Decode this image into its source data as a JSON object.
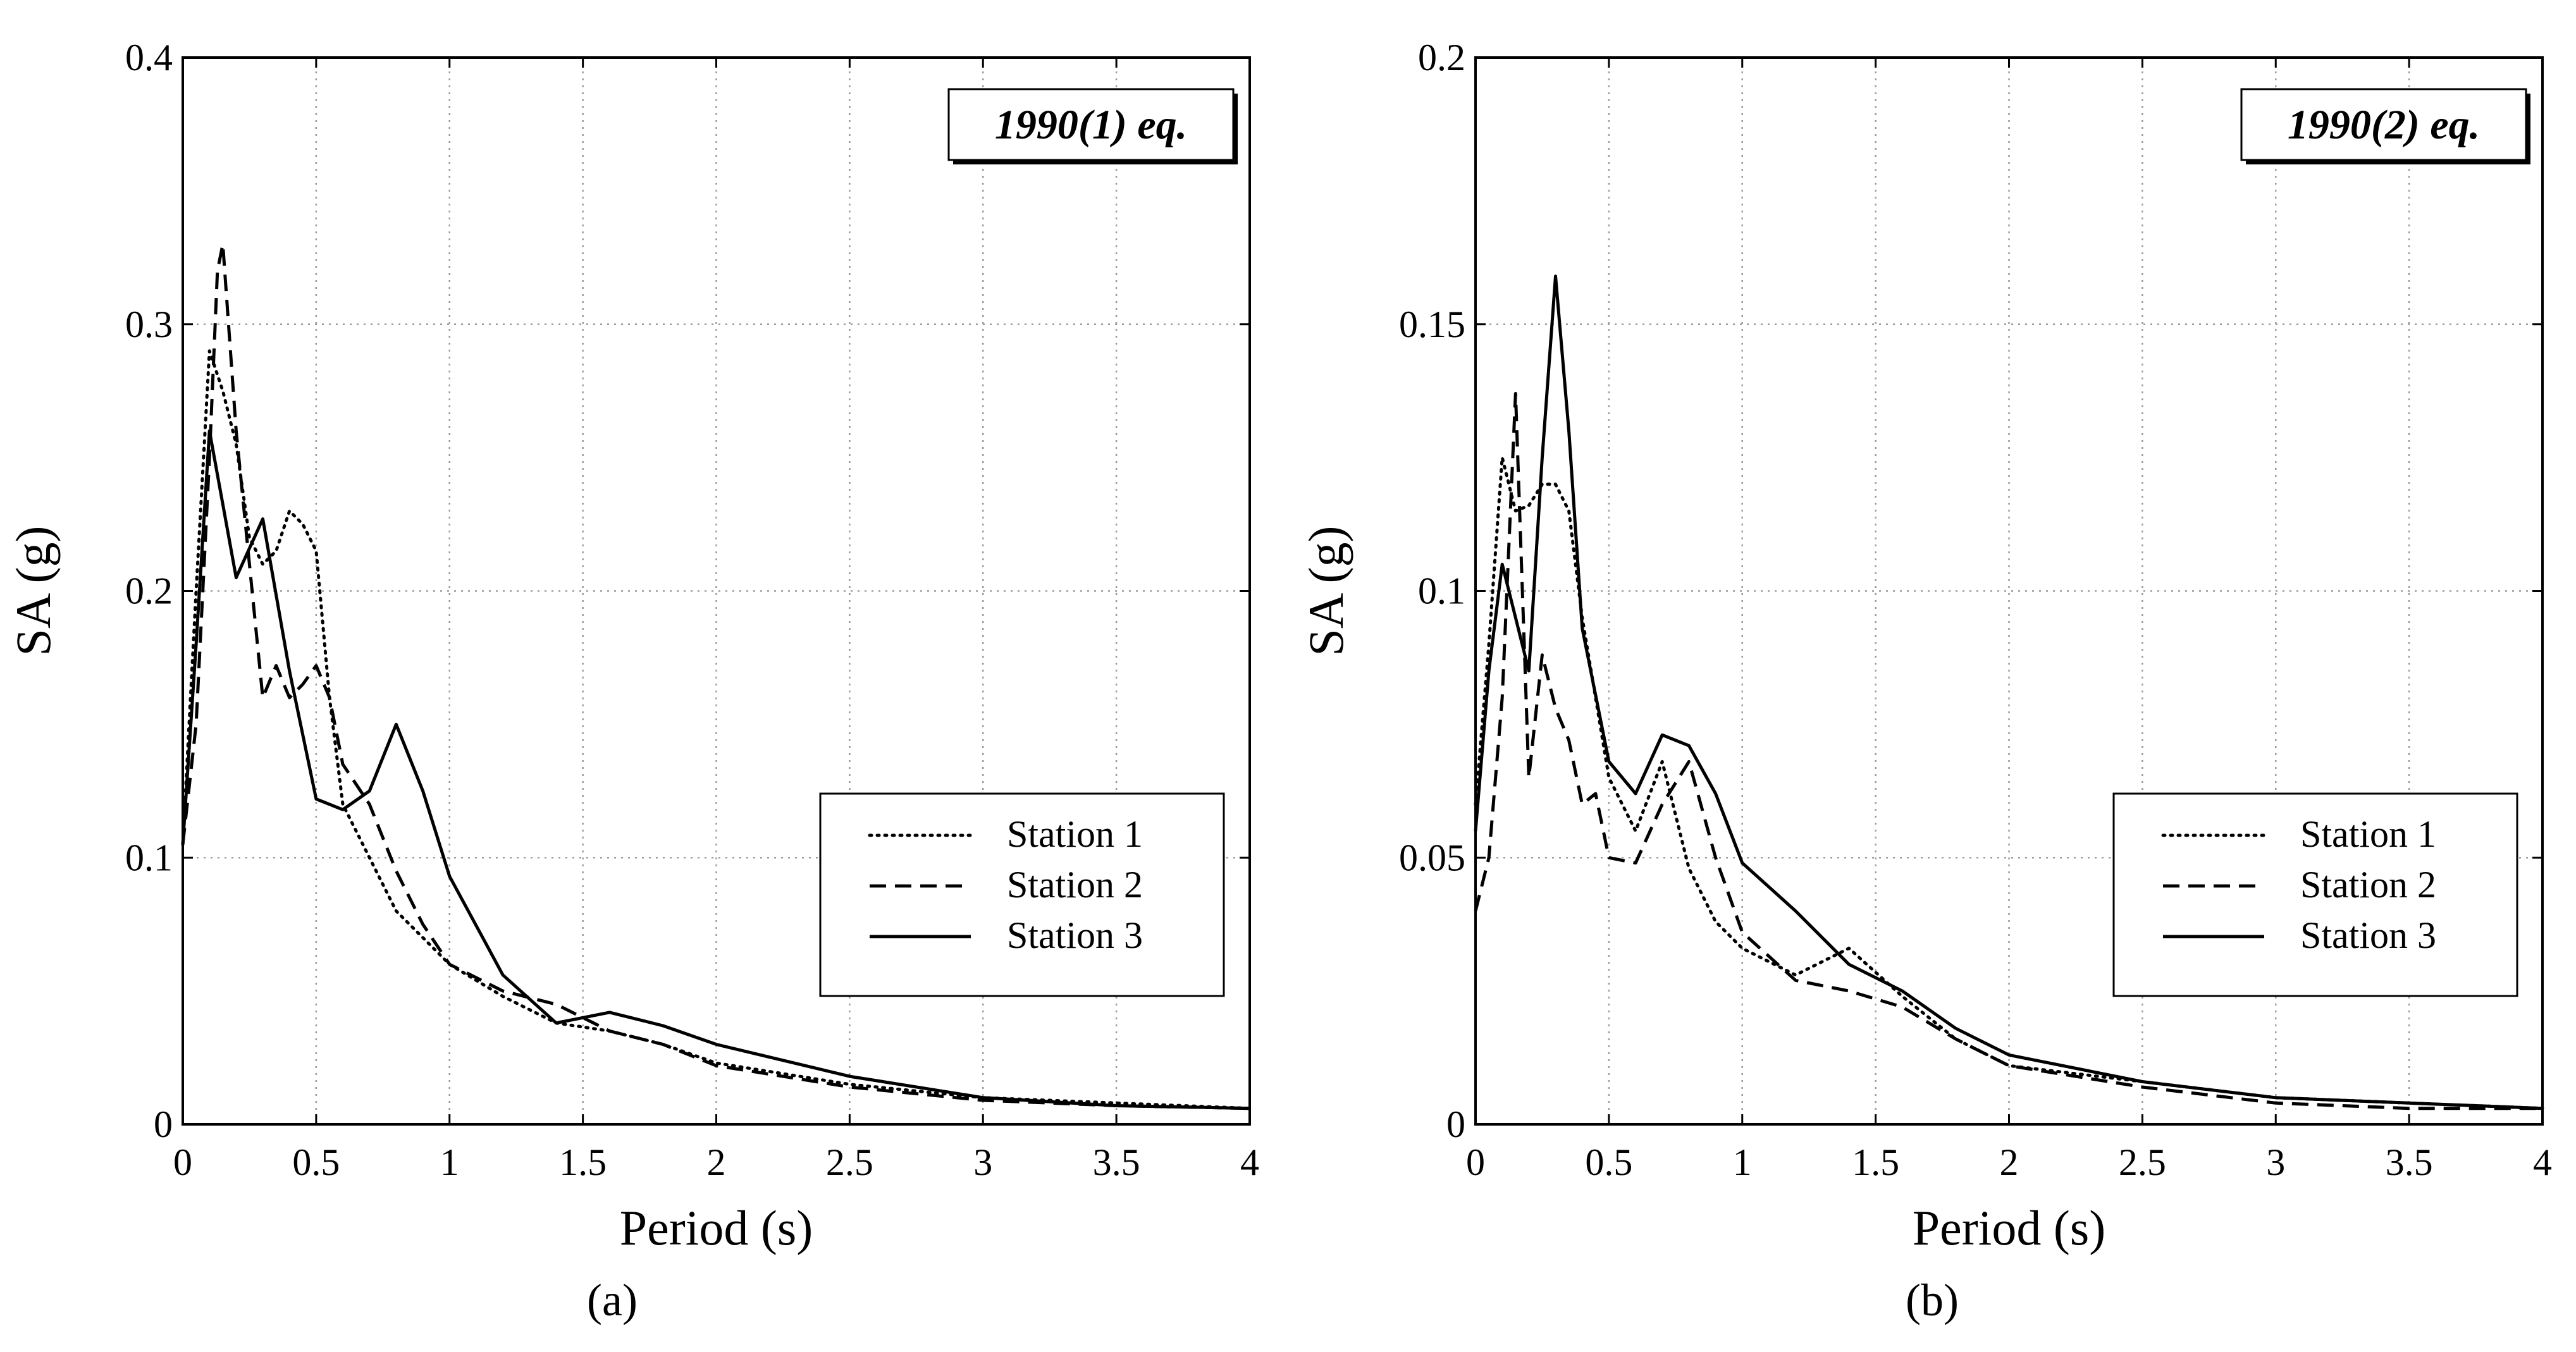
{
  "figure": {
    "panel_labels": [
      "(a)",
      "(b)"
    ]
  },
  "chart_data": [
    {
      "type": "line",
      "title": "1990(1) eq.",
      "xlabel": "Period (s)",
      "ylabel": "SA (g)",
      "xlim": [
        0,
        4
      ],
      "ylim": [
        0,
        0.4
      ],
      "xticks": [
        0,
        0.5,
        1,
        1.5,
        2,
        2.5,
        3,
        3.5,
        4
      ],
      "yticks": [
        0,
        0.1,
        0.2,
        0.3,
        0.4
      ],
      "xtick_labels": [
        "0",
        "0.5",
        "1",
        "1.5",
        "2",
        "2.5",
        "3",
        "3.5",
        "4"
      ],
      "ytick_labels": [
        "0",
        "0.1",
        "0.2",
        "0.3",
        "0.4"
      ],
      "grid": true,
      "legend_position": "center-right",
      "series": [
        {
          "name": "Station 1",
          "style": "dotted",
          "x": [
            0,
            0.05,
            0.1,
            0.15,
            0.2,
            0.25,
            0.3,
            0.35,
            0.4,
            0.45,
            0.5,
            0.55,
            0.6,
            0.65,
            0.7,
            0.8,
            0.9,
            1.0,
            1.2,
            1.4,
            1.6,
            1.8,
            2.0,
            2.5,
            3.0,
            3.5,
            4.0
          ],
          "y": [
            0.105,
            0.2,
            0.29,
            0.275,
            0.255,
            0.22,
            0.21,
            0.215,
            0.23,
            0.225,
            0.215,
            0.16,
            0.12,
            0.11,
            0.1,
            0.08,
            0.07,
            0.06,
            0.048,
            0.038,
            0.035,
            0.03,
            0.023,
            0.015,
            0.01,
            0.008,
            0.006
          ]
        },
        {
          "name": "Station 2",
          "style": "dashed",
          "x": [
            0,
            0.05,
            0.1,
            0.13,
            0.15,
            0.2,
            0.25,
            0.3,
            0.35,
            0.4,
            0.45,
            0.5,
            0.55,
            0.6,
            0.7,
            0.8,
            0.9,
            1.0,
            1.2,
            1.4,
            1.6,
            1.8,
            2.0,
            2.5,
            3.0,
            3.5,
            4.0
          ],
          "y": [
            0.105,
            0.15,
            0.25,
            0.32,
            0.33,
            0.26,
            0.21,
            0.16,
            0.172,
            0.16,
            0.165,
            0.172,
            0.16,
            0.135,
            0.12,
            0.095,
            0.075,
            0.06,
            0.05,
            0.045,
            0.035,
            0.03,
            0.022,
            0.014,
            0.009,
            0.007,
            0.006
          ]
        },
        {
          "name": "Station 3",
          "style": "solid",
          "x": [
            0,
            0.05,
            0.1,
            0.2,
            0.3,
            0.4,
            0.5,
            0.6,
            0.7,
            0.8,
            0.9,
            1.0,
            1.2,
            1.4,
            1.6,
            1.8,
            2.0,
            2.5,
            3.0,
            3.5,
            4.0
          ],
          "y": [
            0.105,
            0.18,
            0.26,
            0.205,
            0.227,
            0.17,
            0.122,
            0.118,
            0.125,
            0.15,
            0.125,
            0.093,
            0.056,
            0.038,
            0.042,
            0.037,
            0.03,
            0.018,
            0.01,
            0.007,
            0.006
          ]
        }
      ]
    },
    {
      "type": "line",
      "title": "1990(2) eq.",
      "xlabel": "Period (s)",
      "ylabel": "SA (g)",
      "xlim": [
        0,
        4
      ],
      "ylim": [
        0,
        0.2
      ],
      "xticks": [
        0,
        0.5,
        1,
        1.5,
        2,
        2.5,
        3,
        3.5,
        4
      ],
      "yticks": [
        0,
        0.05,
        0.1,
        0.15,
        0.2
      ],
      "xtick_labels": [
        "0",
        "0.5",
        "1",
        "1.5",
        "2",
        "2.5",
        "3",
        "3.5",
        "4"
      ],
      "ytick_labels": [
        "0",
        "0.05",
        "0.1",
        "0.15",
        "0.2"
      ],
      "grid": true,
      "legend_position": "center-right",
      "series": [
        {
          "name": "Station 1",
          "style": "dotted",
          "x": [
            0,
            0.05,
            0.1,
            0.15,
            0.2,
            0.25,
            0.3,
            0.35,
            0.4,
            0.5,
            0.6,
            0.7,
            0.8,
            0.9,
            1.0,
            1.2,
            1.4,
            1.6,
            1.8,
            2.0,
            2.5,
            3.0,
            3.5,
            4.0
          ],
          "y": [
            0.06,
            0.09,
            0.125,
            0.115,
            0.116,
            0.12,
            0.12,
            0.115,
            0.095,
            0.065,
            0.055,
            0.068,
            0.048,
            0.038,
            0.033,
            0.028,
            0.033,
            0.024,
            0.016,
            0.011,
            0.008,
            0.005,
            0.004,
            0.003
          ]
        },
        {
          "name": "Station 2",
          "style": "dashed",
          "x": [
            0,
            0.05,
            0.1,
            0.15,
            0.2,
            0.25,
            0.3,
            0.35,
            0.4,
            0.45,
            0.5,
            0.6,
            0.7,
            0.8,
            0.9,
            1.0,
            1.2,
            1.4,
            1.6,
            1.8,
            2.0,
            2.5,
            3.0,
            3.5,
            4.0
          ],
          "y": [
            0.04,
            0.05,
            0.08,
            0.137,
            0.065,
            0.088,
            0.078,
            0.072,
            0.06,
            0.062,
            0.05,
            0.049,
            0.06,
            0.068,
            0.05,
            0.036,
            0.027,
            0.025,
            0.022,
            0.016,
            0.011,
            0.007,
            0.004,
            0.003,
            0.003
          ]
        },
        {
          "name": "Station 3",
          "style": "solid",
          "x": [
            0,
            0.05,
            0.1,
            0.15,
            0.2,
            0.25,
            0.3,
            0.35,
            0.4,
            0.5,
            0.6,
            0.7,
            0.8,
            0.9,
            1.0,
            1.2,
            1.4,
            1.6,
            1.8,
            2.0,
            2.5,
            3.0,
            3.5,
            4.0
          ],
          "y": [
            0.055,
            0.085,
            0.105,
            0.095,
            0.085,
            0.125,
            0.159,
            0.13,
            0.093,
            0.068,
            0.062,
            0.073,
            0.071,
            0.062,
            0.049,
            0.04,
            0.03,
            0.025,
            0.018,
            0.013,
            0.008,
            0.005,
            0.004,
            0.003
          ]
        }
      ]
    }
  ]
}
